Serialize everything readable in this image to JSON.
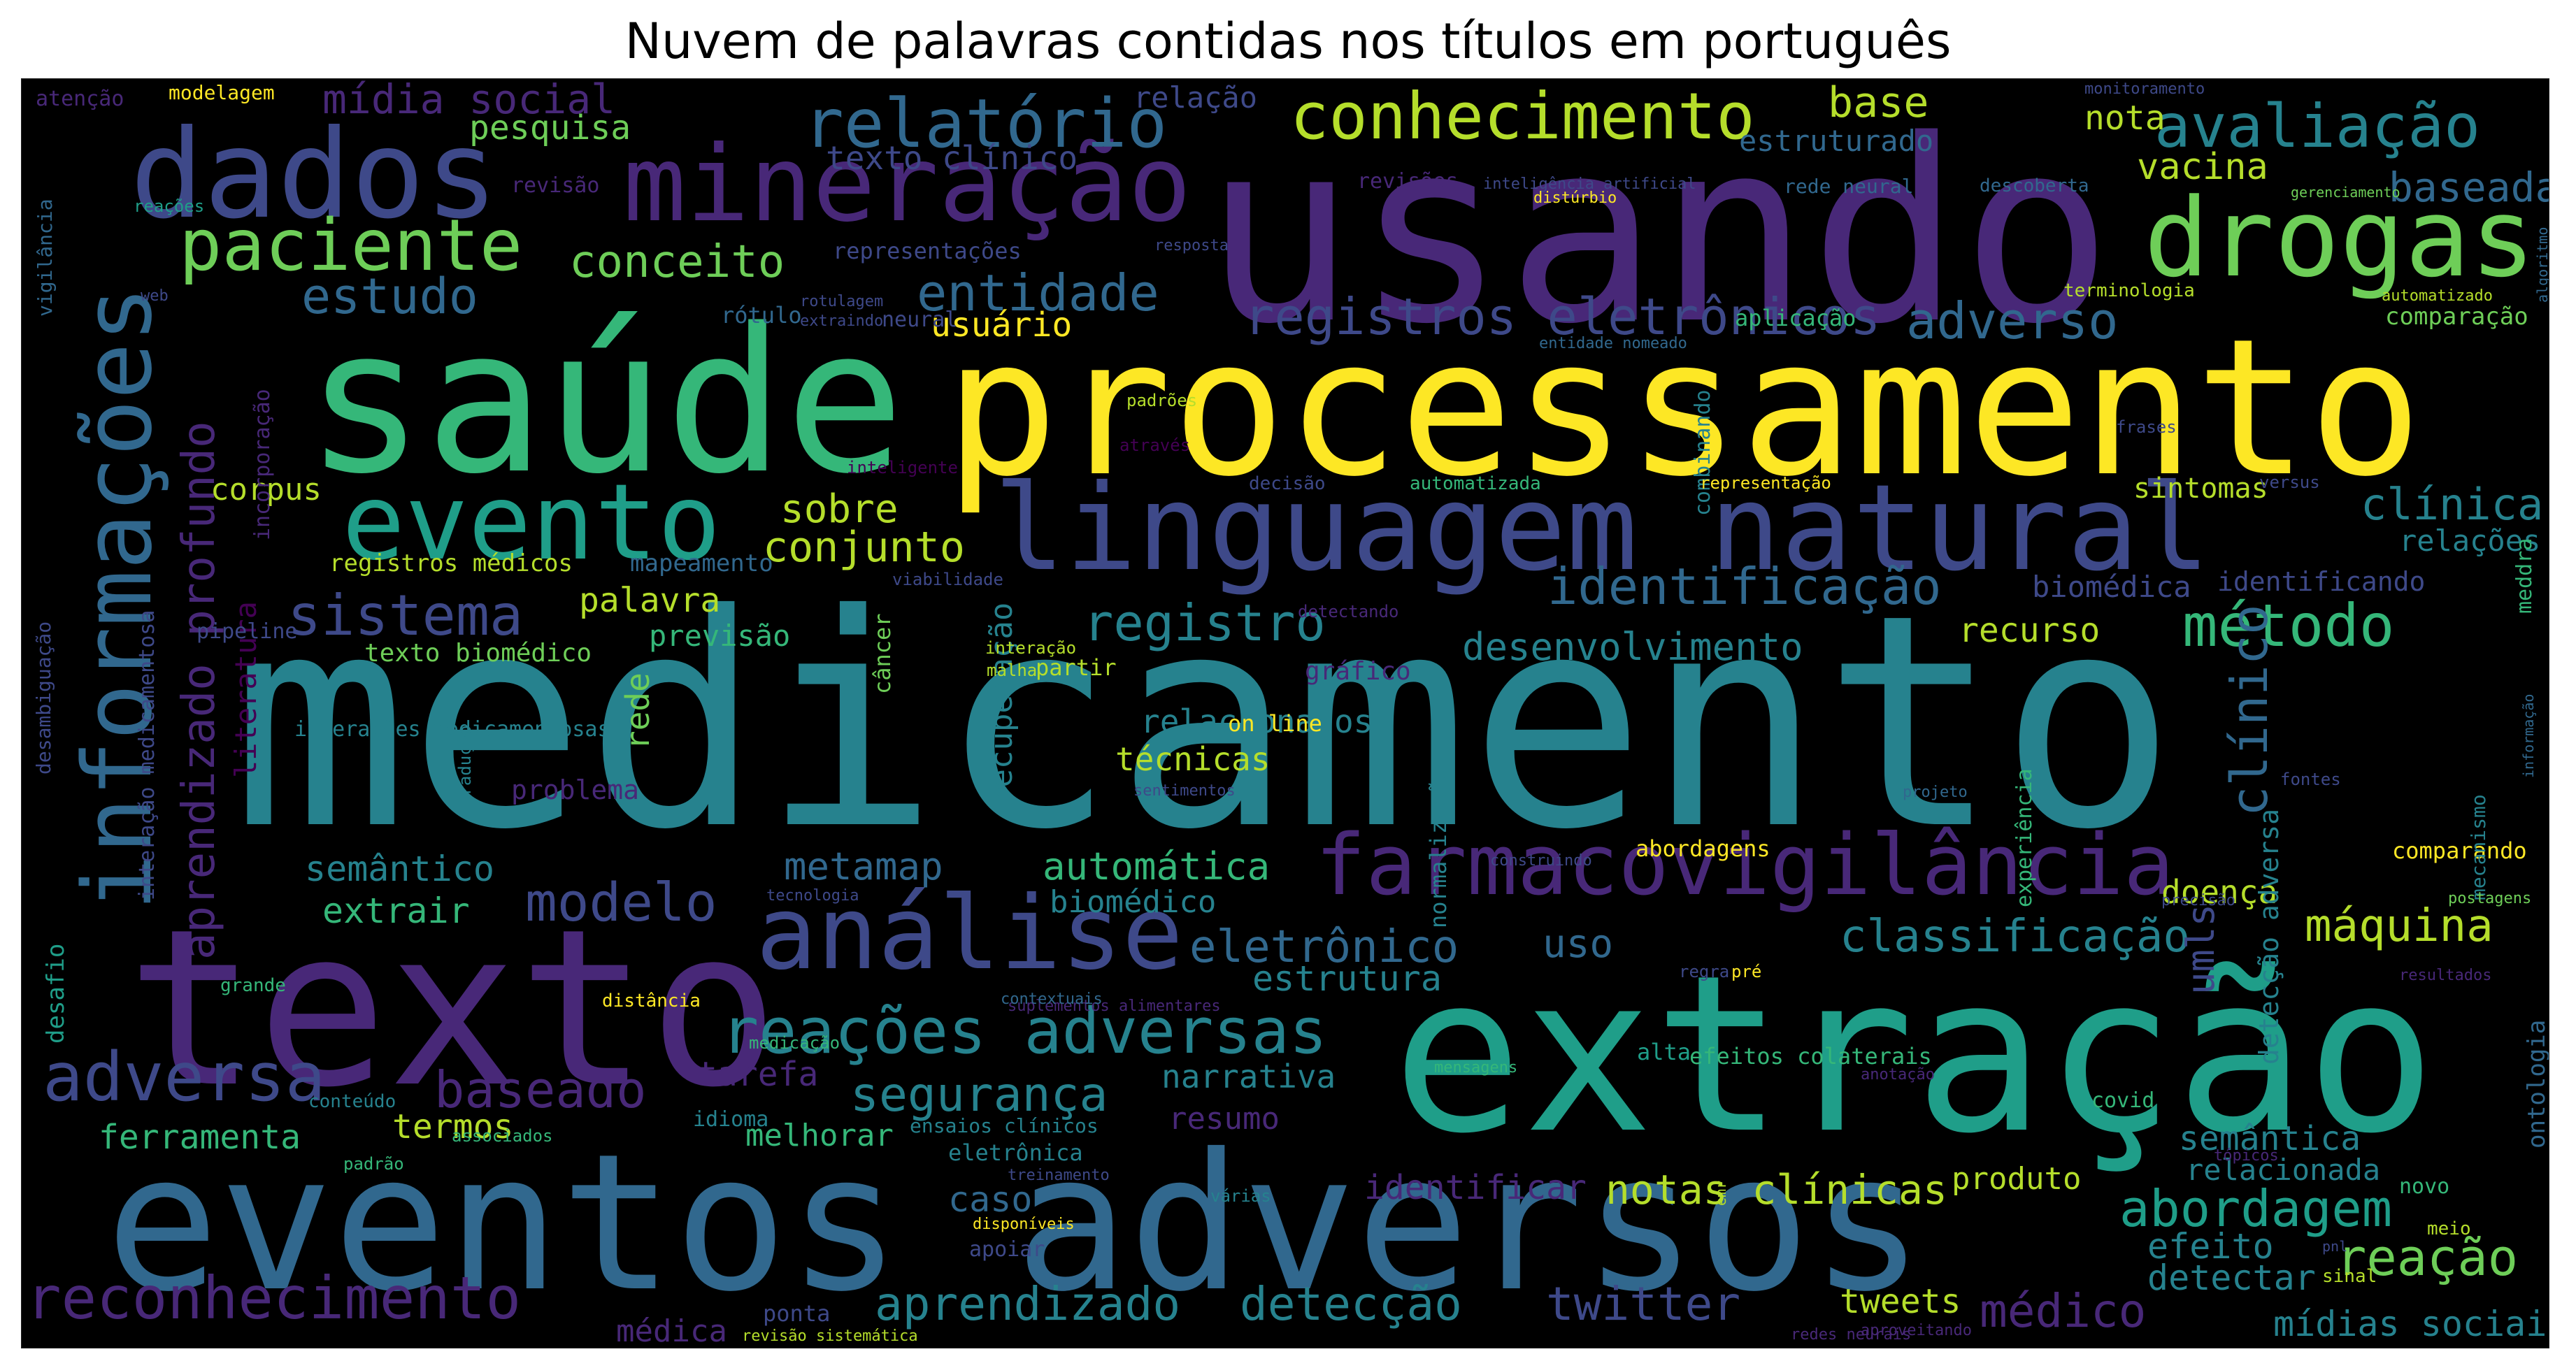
{
  "title": "Nuvem de palavras contidas nos títulos em português",
  "palette": [
    "#440154",
    "#482878",
    "#3e4989",
    "#31688e",
    "#26828e",
    "#1f9e89",
    "#35b779",
    "#6ece58",
    "#b5de2b",
    "#fde725"
  ],
  "words": [
    {
      "t": "medicamento",
      "c": "#26828e",
      "w": 10
    },
    {
      "t": "processamento",
      "c": "#fde725",
      "w": 9
    },
    {
      "t": "usando",
      "c": "#482878",
      "w": 9
    },
    {
      "t": "saúde",
      "c": "#35b779",
      "w": 8
    },
    {
      "t": "extração",
      "c": "#1f9e89",
      "w": 8
    },
    {
      "t": "eventos adversos",
      "c": "#31688e",
      "w": 8
    },
    {
      "t": "texto",
      "c": "#482878",
      "w": 7
    },
    {
      "t": "linguagem natural",
      "c": "#3e4989",
      "w": 6
    },
    {
      "t": "dados",
      "c": "#3e4989",
      "w": 6
    },
    {
      "t": "mineração",
      "c": "#482878",
      "w": 5
    },
    {
      "t": "drogas",
      "c": "#6ece58",
      "w": 5
    },
    {
      "t": "informações",
      "c": "#31688e",
      "w": 5
    },
    {
      "t": "evento",
      "c": "#1f9e89",
      "w": 5
    },
    {
      "t": "análise",
      "c": "#3e4989",
      "w": 5
    },
    {
      "t": "farmacovigilância",
      "c": "#482878",
      "w": 4
    },
    {
      "t": "relatório",
      "c": "#31688e",
      "w": 4
    },
    {
      "t": "conhecimento",
      "c": "#b5de2b",
      "w": 4
    },
    {
      "t": "avaliação",
      "c": "#26828e",
      "w": 4
    },
    {
      "t": "paciente",
      "c": "#6ece58",
      "w": 4
    },
    {
      "t": "reações adversas",
      "c": "#26828e",
      "w": 4
    },
    {
      "t": "adversa",
      "c": "#3e4989",
      "w": 4
    },
    {
      "t": "reconhecimento",
      "c": "#482878",
      "w": 4
    },
    {
      "t": "sistema",
      "c": "#3e4989",
      "w": 4
    },
    {
      "t": "método",
      "c": "#35b779",
      "w": 4
    },
    {
      "t": "identificação",
      "c": "#31688e",
      "w": 3
    },
    {
      "t": "registros eletrônicos",
      "c": "#3e4989",
      "w": 3
    },
    {
      "t": "entidade",
      "c": "#31688e",
      "w": 3
    },
    {
      "t": "estudo",
      "c": "#31688e",
      "w": 3
    },
    {
      "t": "conceito",
      "c": "#6ece58",
      "w": 3
    },
    {
      "t": "adverso",
      "c": "#31688e",
      "w": 3
    },
    {
      "t": "registro",
      "c": "#26828e",
      "w": 3
    },
    {
      "t": "aprendizado profundo",
      "c": "#482878",
      "w": 3
    },
    {
      "t": "clínico",
      "c": "#31688e",
      "w": 3
    },
    {
      "t": "modelo",
      "c": "#3e4989",
      "w": 3
    },
    {
      "t": "eletrônico",
      "c": "#31688e",
      "w": 3
    },
    {
      "t": "classificação",
      "c": "#26828e",
      "w": 3
    },
    {
      "t": "máquina",
      "c": "#b5de2b",
      "w": 3
    },
    {
      "t": "baseado",
      "c": "#482878",
      "w": 3
    },
    {
      "t": "segurança",
      "c": "#26828e",
      "w": 3
    },
    {
      "t": "abordagem",
      "c": "#1f9e89",
      "w": 3
    },
    {
      "t": "reação",
      "c": "#6ece58",
      "w": 3
    },
    {
      "t": "aprendizado",
      "c": "#26828e",
      "w": 3
    },
    {
      "t": "detecção",
      "c": "#26828e",
      "w": 3
    },
    {
      "t": "twitter",
      "c": "#3e4989",
      "w": 3
    },
    {
      "t": "médico",
      "c": "#482878",
      "w": 3
    },
    {
      "t": "notas clínicas",
      "c": "#b5de2b",
      "w": 3
    },
    {
      "t": "desenvolvimento",
      "c": "#26828e",
      "w": 3
    },
    {
      "t": "clínica",
      "c": "#26828e",
      "w": 2
    },
    {
      "t": "conjunto",
      "c": "#b5de2b",
      "w": 2
    },
    {
      "t": "sobre",
      "c": "#b5de2b",
      "w": 2
    },
    {
      "t": "mídia social",
      "c": "#482878",
      "w": 2
    },
    {
      "t": "base",
      "c": "#b5de2b",
      "w": 2
    },
    {
      "t": "baseada",
      "c": "#31688e",
      "w": 2
    },
    {
      "t": "vacina",
      "c": "#b5de2b",
      "w": 2
    },
    {
      "t": "nota",
      "c": "#b5de2b",
      "w": 2
    },
    {
      "t": "usuário",
      "c": "#fde725",
      "w": 2
    },
    {
      "t": "pesquisa",
      "c": "#6ece58",
      "w": 2
    },
    {
      "t": "estruturado",
      "c": "#31688e",
      "w": 2
    },
    {
      "t": "texto clínico",
      "c": "#3e4989",
      "w": 2
    },
    {
      "t": "relação",
      "c": "#3e4989",
      "w": 2
    },
    {
      "t": "corpus",
      "c": "#b5de2b",
      "w": 2
    },
    {
      "t": "palavra",
      "c": "#b5de2b",
      "w": 2
    },
    {
      "t": "previsão",
      "c": "#35b779",
      "w": 2
    },
    {
      "t": "recurso",
      "c": "#b5de2b",
      "w": 2
    },
    {
      "t": "biomédica",
      "c": "#3e4989",
      "w": 2
    },
    {
      "t": "sintomas",
      "c": "#b5de2b",
      "w": 2
    },
    {
      "t": "relações",
      "c": "#26828e",
      "w": 2
    },
    {
      "t": "identificando",
      "c": "#3e4989",
      "w": 2
    },
    {
      "t": "umls",
      "c": "#3e4989",
      "w": 2
    },
    {
      "t": "relacionados",
      "c": "#26828e",
      "w": 2
    },
    {
      "t": "técnicas",
      "c": "#b5de2b",
      "w": 2
    },
    {
      "t": "metamap",
      "c": "#31688e",
      "w": 2
    },
    {
      "t": "automática",
      "c": "#35b779",
      "w": 2
    },
    {
      "t": "biomédico",
      "c": "#26828e",
      "w": 2
    },
    {
      "t": "semântico",
      "c": "#26828e",
      "w": 2
    },
    {
      "t": "extrair",
      "c": "#35b779",
      "w": 2
    },
    {
      "t": "uso",
      "c": "#31688e",
      "w": 2
    },
    {
      "t": "estrutura",
      "c": "#26828e",
      "w": 2
    },
    {
      "t": "tarefa",
      "c": "#482878",
      "w": 2
    },
    {
      "t": "narrativa",
      "c": "#26828e",
      "w": 2
    },
    {
      "t": "resumo",
      "c": "#482878",
      "w": 2
    },
    {
      "t": "melhorar",
      "c": "#35b779",
      "w": 2
    },
    {
      "t": "termos",
      "c": "#b5de2b",
      "w": 2
    },
    {
      "t": "ferramenta",
      "c": "#35b779",
      "w": 2
    },
    {
      "t": "identificar",
      "c": "#482878",
      "w": 2
    },
    {
      "t": "produto",
      "c": "#b5de2b",
      "w": 2
    },
    {
      "t": "semântica",
      "c": "#26828e",
      "w": 2
    },
    {
      "t": "relacionada",
      "c": "#26828e",
      "w": 2
    },
    {
      "t": "caso",
      "c": "#31688e",
      "w": 2
    },
    {
      "t": "efeito",
      "c": "#26828e",
      "w": 2
    },
    {
      "t": "detectar",
      "c": "#26828e",
      "w": 2
    },
    {
      "t": "mídias sociais",
      "c": "#26828e",
      "w": 2
    },
    {
      "t": "tweets",
      "c": "#b5de2b",
      "w": 2
    },
    {
      "t": "doença",
      "c": "#b5de2b",
      "w": 2
    },
    {
      "t": "rede",
      "c": "#6ece58",
      "w": 2
    },
    {
      "t": "problema",
      "c": "#482878",
      "w": 2
    },
    {
      "t": "recuperação",
      "c": "#26828e",
      "w": 2
    },
    {
      "t": "literatura",
      "c": "#440154",
      "w": 2
    },
    {
      "t": "médica",
      "c": "#482878",
      "w": 2
    },
    {
      "t": "ontologia",
      "c": "#31688e",
      "w": 2
    },
    {
      "t": "detecção adversa",
      "c": "#26828e",
      "w": 2
    },
    {
      "t": "interação medicamentosa",
      "c": "#3e4989",
      "w": 1
    },
    {
      "t": "texto biomédico",
      "c": "#6ece58",
      "w": 1
    },
    {
      "t": "registros médicos",
      "c": "#b5de2b",
      "w": 1
    },
    {
      "t": "mapeamento",
      "c": "#31688e",
      "w": 1
    },
    {
      "t": "pipeline",
      "c": "#3e4989",
      "w": 1
    },
    {
      "t": "interações medicamentosas",
      "c": "#26828e",
      "w": 1
    },
    {
      "t": "gráfico",
      "c": "#482878",
      "w": 1
    },
    {
      "t": "partir",
      "c": "#b5de2b",
      "w": 1
    },
    {
      "t": "on line",
      "c": "#fde725",
      "w": 1
    },
    {
      "t": "abordagens",
      "c": "#fde725",
      "w": 1
    },
    {
      "t": "comparando",
      "c": "#fde725",
      "w": 1
    },
    {
      "t": "comparação",
      "c": "#6ece58",
      "w": 1
    },
    {
      "t": "aplicação",
      "c": "#35b779",
      "w": 1
    },
    {
      "t": "rótulo",
      "c": "#31688e",
      "w": 1
    },
    {
      "t": "neural",
      "c": "#3e4989",
      "w": 1
    },
    {
      "t": "representações",
      "c": "#3e4989",
      "w": 1
    },
    {
      "t": "revisão",
      "c": "#482878",
      "w": 1
    },
    {
      "t": "modelagem",
      "c": "#fde725",
      "w": 1
    },
    {
      "t": "atenção",
      "c": "#482878",
      "w": 1
    },
    {
      "t": "desafio",
      "c": "#1f9e89",
      "w": 1
    },
    {
      "t": "alta",
      "c": "#1f9e89",
      "w": 1
    },
    {
      "t": "efeitos colaterais",
      "c": "#35b779",
      "w": 1
    },
    {
      "t": "ensaios clínicos",
      "c": "#26828e",
      "w": 1
    },
    {
      "t": "idioma",
      "c": "#26828e",
      "w": 1
    },
    {
      "t": "eletrônica",
      "c": "#26828e",
      "w": 1
    },
    {
      "t": "apoiar",
      "c": "#3e4989",
      "w": 1
    },
    {
      "t": "ponta",
      "c": "#3e4989",
      "w": 1
    },
    {
      "t": "covid",
      "c": "#35b779",
      "w": 1
    },
    {
      "t": "novo",
      "c": "#35b779",
      "w": 1
    },
    {
      "t": "meio",
      "c": "#b5de2b",
      "w": 1
    },
    {
      "t": "sinal",
      "c": "#b5de2b",
      "w": 1
    },
    {
      "t": "experiência",
      "c": "#35b779",
      "w": 1
    },
    {
      "t": "normalização",
      "c": "#26828e",
      "w": 1
    },
    {
      "t": "mecanismo",
      "c": "#26828e",
      "w": 1
    },
    {
      "t": "meddra",
      "c": "#35b779",
      "w": 1
    },
    {
      "t": "câncer",
      "c": "#6ece58",
      "w": 1
    },
    {
      "t": "combinando",
      "c": "#26828e",
      "w": 1
    },
    {
      "t": "incorporação",
      "c": "#482878",
      "w": 1
    },
    {
      "t": "vigilância",
      "c": "#31688e",
      "w": 1
    },
    {
      "t": "desambiguação",
      "c": "#3e4989",
      "w": 1
    },
    {
      "t": "grande",
      "c": "#35b779",
      "w": 1
    },
    {
      "t": "distância",
      "c": "#fde725",
      "w": 1
    },
    {
      "t": "conteúdo",
      "c": "#26828e",
      "w": 1
    },
    {
      "t": "padrão",
      "c": "#35b779",
      "w": 1
    },
    {
      "t": "associados",
      "c": "#35b779",
      "w": 1
    },
    {
      "t": "tradução",
      "c": "#26828e",
      "w": 1
    },
    {
      "t": "reações",
      "c": "#1f9e89",
      "w": 1
    },
    {
      "t": "web",
      "c": "#3e4989",
      "w": 1
    },
    {
      "t": "rotulagem",
      "c": "#3e4989",
      "w": 1
    },
    {
      "t": "extraindo",
      "c": "#3e4989",
      "w": 1
    },
    {
      "t": "padrões",
      "c": "#b5de2b",
      "w": 1
    },
    {
      "t": "através",
      "c": "#440154",
      "w": 1
    },
    {
      "t": "inteligente",
      "c": "#440154",
      "w": 1
    },
    {
      "t": "viabilidade",
      "c": "#3e4989",
      "w": 1
    },
    {
      "t": "interação",
      "c": "#b5de2b",
      "w": 1
    },
    {
      "t": "malha",
      "c": "#b5de2b",
      "w": 1
    },
    {
      "t": "detectando",
      "c": "#482878",
      "w": 1
    },
    {
      "t": "decisão",
      "c": "#3e4989",
      "w": 1
    },
    {
      "t": "automatizada",
      "c": "#35b779",
      "w": 1
    },
    {
      "t": "representação",
      "c": "#fde725",
      "w": 1
    },
    {
      "t": "versus",
      "c": "#3e4989",
      "w": 1
    },
    {
      "t": "frases",
      "c": "#3e4989",
      "w": 1
    },
    {
      "t": "entidade nomeado",
      "c": "#31688e",
      "w": 1
    },
    {
      "t": "automatizado",
      "c": "#b5de2b",
      "w": 1
    },
    {
      "t": "terminologia",
      "c": "#b5de2b",
      "w": 1
    },
    {
      "t": "gerenciamento",
      "c": "#6ece58",
      "w": 1
    },
    {
      "t": "descoberta",
      "c": "#31688e",
      "w": 1
    },
    {
      "t": "inteligência artificial",
      "c": "#3e4989",
      "w": 1
    },
    {
      "t": "rede neural",
      "c": "#31688e",
      "w": 1
    },
    {
      "t": "revisões",
      "c": "#482878",
      "w": 1
    },
    {
      "t": "distúrbio",
      "c": "#fde725",
      "w": 1
    },
    {
      "t": "resposta",
      "c": "#3e4989",
      "w": 1
    },
    {
      "t": "monitoramento",
      "c": "#3e4989",
      "w": 1
    },
    {
      "t": "algoritmo",
      "c": "#31688e",
      "w": 1
    },
    {
      "t": "informação",
      "c": "#31688e",
      "w": 1
    },
    {
      "t": "fontes",
      "c": "#3e4989",
      "w": 1
    },
    {
      "t": "postagens",
      "c": "#6ece58",
      "w": 1
    },
    {
      "t": "precisão",
      "c": "#3e4989",
      "w": 1
    },
    {
      "t": "resultados",
      "c": "#482878",
      "w": 1
    },
    {
      "t": "tópicos",
      "c": "#482878",
      "w": 1
    },
    {
      "t": "emr",
      "c": "#b5de2b",
      "w": 1
    },
    {
      "t": "pnl",
      "c": "#3e4989",
      "w": 1
    },
    {
      "t": "redes neurais",
      "c": "#482878",
      "w": 1
    },
    {
      "t": "aproveitando",
      "c": "#482878",
      "w": 1
    },
    {
      "t": "revisão sistemática",
      "c": "#b5de2b",
      "w": 1
    },
    {
      "t": "disponíveis",
      "c": "#fde725",
      "w": 1
    },
    {
      "t": "várias",
      "c": "#26828e",
      "w": 1
    },
    {
      "t": "treinamento",
      "c": "#3e4989",
      "w": 1
    },
    {
      "t": "mensagens",
      "c": "#35b779",
      "w": 1
    },
    {
      "t": "anotação",
      "c": "#482878",
      "w": 1
    },
    {
      "t": "suplementos alimentares",
      "c": "#482878",
      "w": 1
    },
    {
      "t": "contextuais",
      "c": "#31688e",
      "w": 1
    },
    {
      "t": "medicação",
      "c": "#35b779",
      "w": 1
    },
    {
      "t": "regra",
      "c": "#3e4989",
      "w": 1
    },
    {
      "t": "pré",
      "c": "#fde725",
      "w": 1
    },
    {
      "t": "construindo",
      "c": "#3e4989",
      "w": 1
    },
    {
      "t": "tecnologia",
      "c": "#3e4989",
      "w": 1
    },
    {
      "t": "sentimentos",
      "c": "#3e4989",
      "w": 1
    },
    {
      "t": "projeto",
      "c": "#31688e",
      "w": 1
    }
  ]
}
